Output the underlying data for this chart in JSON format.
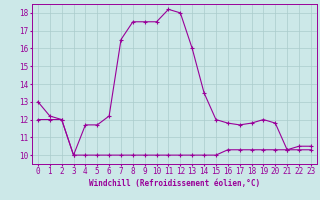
{
  "xlabel": "Windchill (Refroidissement éolien,°C)",
  "hours": [
    0,
    1,
    2,
    3,
    4,
    5,
    6,
    7,
    8,
    9,
    10,
    11,
    12,
    13,
    14,
    15,
    16,
    17,
    18,
    19,
    20,
    21,
    22,
    23
  ],
  "line1": [
    13,
    12.2,
    12,
    10,
    11.7,
    11.7,
    12.2,
    16.5,
    17.5,
    17.5,
    17.5,
    18.2,
    18,
    16,
    13.5,
    12,
    11.8,
    11.7,
    11.8,
    12,
    11.8,
    10.3,
    10.5,
    10.5
  ],
  "line2": [
    12,
    12,
    12,
    10,
    10,
    10,
    10,
    10,
    10,
    10,
    10,
    10,
    10,
    10,
    10,
    10,
    10.3,
    10.3,
    10.3,
    10.3,
    10.3,
    10.3,
    10.3,
    10.3
  ],
  "ylim": [
    9.5,
    18.5
  ],
  "yticks": [
    10,
    11,
    12,
    13,
    14,
    15,
    16,
    17,
    18
  ],
  "bg_color": "#cce8e8",
  "line_color": "#990099",
  "grid_color": "#aacccc",
  "xlabel_fontsize": 5.5,
  "tick_fontsize": 5.5
}
